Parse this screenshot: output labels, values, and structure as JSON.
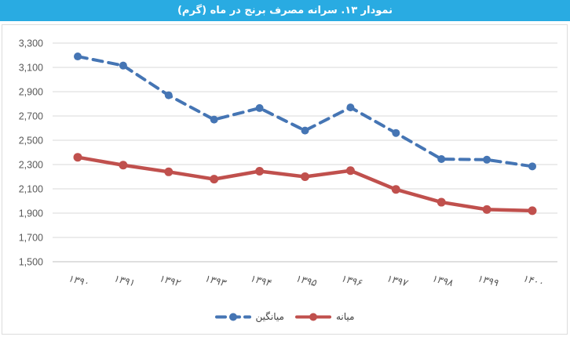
{
  "title": {
    "text": "نمودار ۱۳. سرانه مصرف برنج در ماه (گرم)"
  },
  "colors": {
    "title_bar_bg": "#29ABE2",
    "title_text": "#FFFFFF",
    "grid": "#D9D9D9",
    "axis": "#BFBFBF",
    "tick_text": "#595959",
    "legend_text": "#3F3F3F",
    "box_border": "#DCDCDC"
  },
  "chart_data": {
    "type": "line",
    "title": "نمودار ۱۳. سرانه مصرف برنج در ماه (گرم)",
    "title_translation": "Chart 13. Per-capita monthly rice consumption (grams)",
    "categories": [
      "۱۳۹۰",
      "۱۳۹۱",
      "۱۳۹۲",
      "۱۳۹۳",
      "۱۳۹۴",
      "۱۳۹۵",
      "۱۳۹۶",
      "۱۳۹۷",
      "۱۳۹۸",
      "۱۳۹۹",
      "۱۴۰۰"
    ],
    "categories_latin": [
      1390,
      1391,
      1392,
      1393,
      1394,
      1395,
      1396,
      1397,
      1398,
      1399,
      1400
    ],
    "series": [
      {
        "key": "mean",
        "name": "میانگین",
        "color": "#4575B4",
        "style": "dashed",
        "values": [
          3190,
          3115,
          2870,
          2670,
          2765,
          2580,
          2770,
          2560,
          2345,
          2340,
          2285
        ]
      },
      {
        "key": "median",
        "name": "میانه",
        "color": "#C0504D",
        "style": "solid",
        "values": [
          2360,
          2295,
          2240,
          2180,
          2245,
          2200,
          2250,
          2095,
          1990,
          1930,
          1920
        ]
      }
    ],
    "ylim": [
      1500,
      3300
    ],
    "y_ticks": {
      "values": [
        3300,
        3100,
        2900,
        2700,
        2500,
        2300,
        2100,
        1900,
        1700,
        1500
      ],
      "labels": [
        "3,300",
        "3,100",
        "2,900",
        "2,700",
        "2,500",
        "2,300",
        "2,100",
        "1,900",
        "1,700",
        "1,500"
      ]
    },
    "xlabel": "",
    "ylabel": "",
    "grid": true,
    "legend_position": "bottom"
  }
}
